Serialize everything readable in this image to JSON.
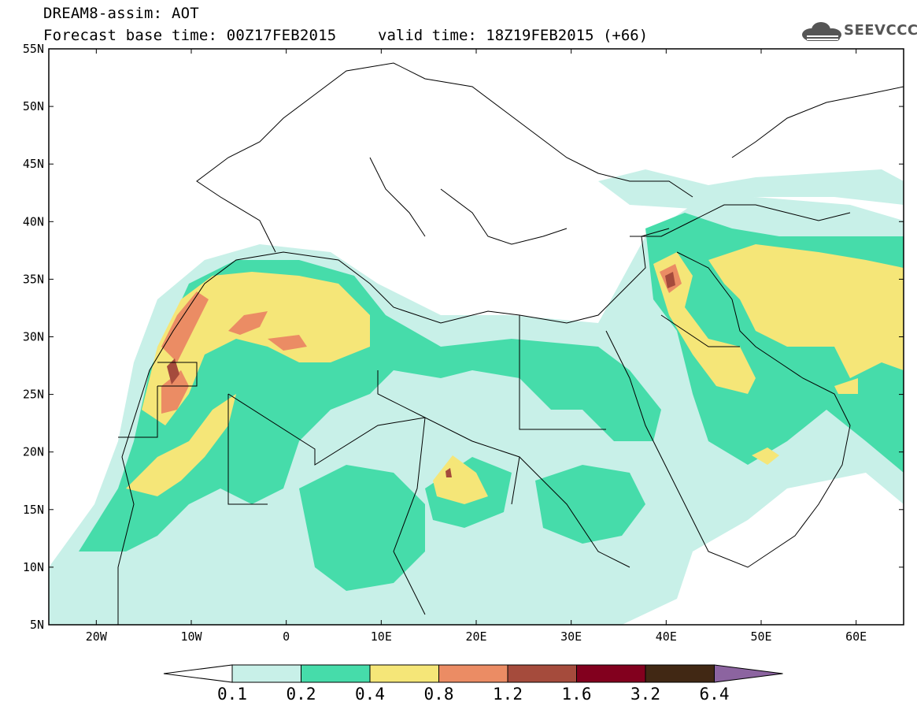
{
  "header": {
    "title": "DREAM8-assim: AOT",
    "base_time": "Forecast base time: 00Z17FEB2015",
    "valid_time": "valid time: 18Z19FEB2015 (+66)",
    "logo_text": "SEEVCCC",
    "logo_icon": "cloud-icon"
  },
  "map": {
    "lon_range": [
      -25,
      65
    ],
    "lat_range": [
      5,
      55
    ],
    "lat_ticks": [
      "55N",
      "50N",
      "45N",
      "40N",
      "35N",
      "30N",
      "25N",
      "20N",
      "15N",
      "10N",
      "5N"
    ],
    "lon_ticks": [
      "20W",
      "10W",
      "0",
      "10E",
      "20E",
      "30E",
      "40E",
      "50E",
      "60E"
    ],
    "border_color": "#000000"
  },
  "colorbar": {
    "colors": [
      "#ffffff",
      "#c8f0e8",
      "#46dcaa",
      "#f5e678",
      "#eb8c64",
      "#a54b3c",
      "#82001e",
      "#412814",
      "#8c64a0"
    ],
    "labels": [
      "0.1",
      "0.2",
      "0.4",
      "0.8",
      "1.2",
      "1.6",
      "3.2",
      "6.4"
    ]
  }
}
